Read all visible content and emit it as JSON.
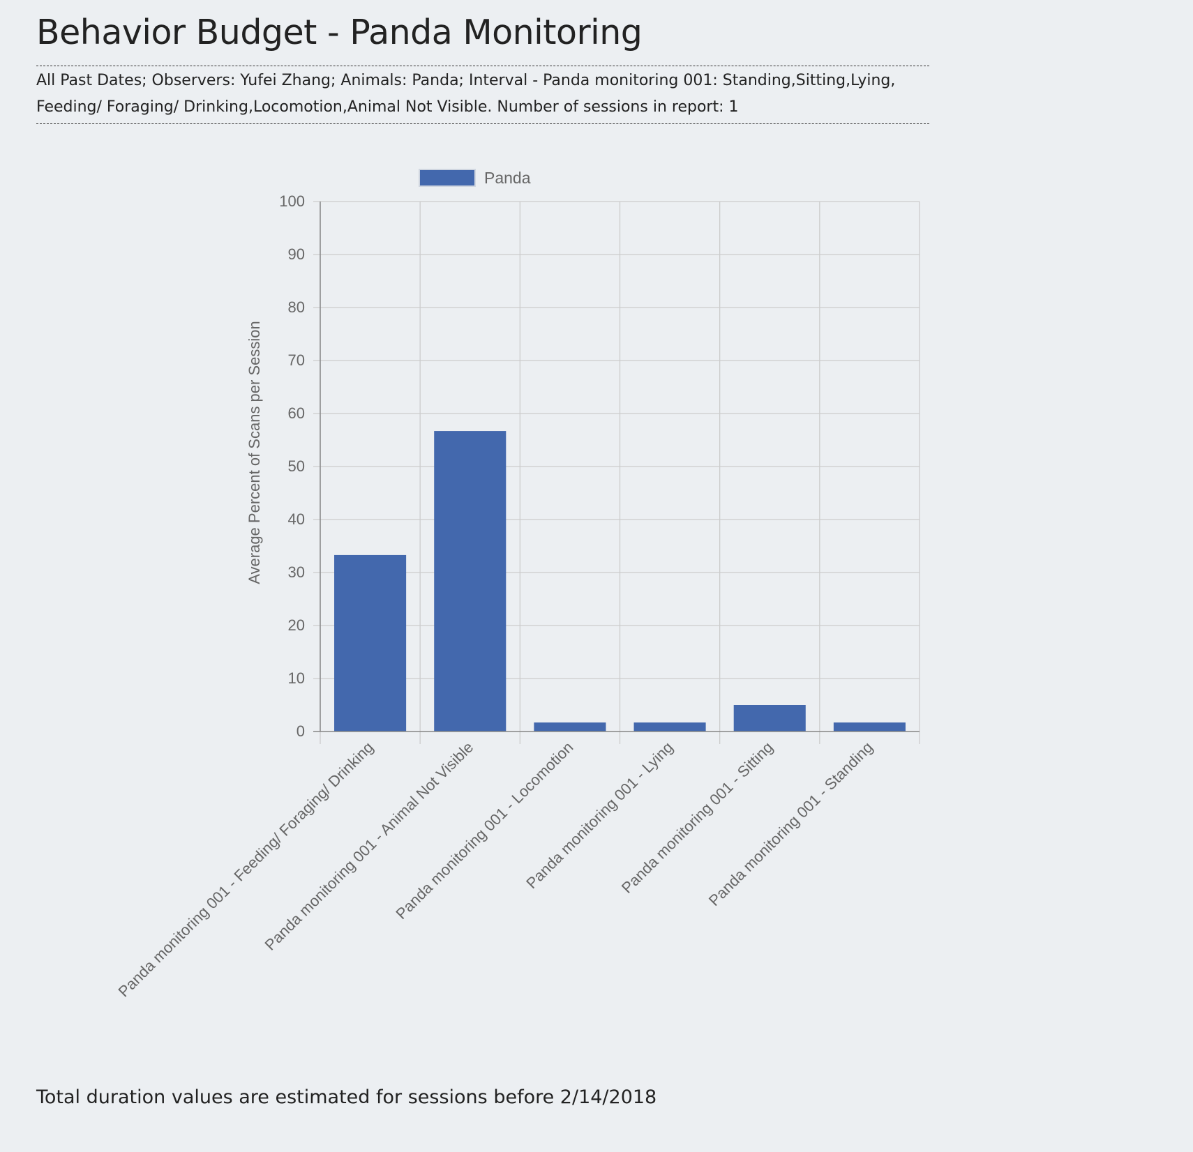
{
  "page": {
    "title": "Behavior Budget - Panda Monitoring",
    "summary": "All Past Dates; Observers: Yufei Zhang; Animals: Panda; Interval - Panda monitoring 001: Standing,Sitting,Lying, Feeding/ Foraging/ Drinking,Locomotion,Animal Not Visible. Number of sessions in report: 1",
    "footnote": "Total duration values are estimated for sessions before 2/14/2018"
  },
  "colors": {
    "bar": "#4368ad",
    "grid": "#cccccc",
    "axis": "#888888",
    "text": "#666666",
    "background": "#eceff2"
  },
  "chart_data": {
    "type": "bar",
    "categories": [
      "Panda monitoring 001 -  Feeding/ Foraging/ Drinking",
      "Panda monitoring 001 - Animal Not Visible",
      "Panda monitoring 001 - Locomotion",
      "Panda monitoring 001 - Lying",
      "Panda monitoring 001 - Sitting",
      "Panda monitoring 001 - Standing"
    ],
    "series": [
      {
        "name": "Panda",
        "values": [
          33.3,
          56.7,
          1.7,
          1.7,
          5.0,
          1.7
        ]
      }
    ],
    "title": "",
    "xlabel": "",
    "ylabel": "Average Percent of Scans per Session",
    "ylim": [
      0,
      100
    ],
    "yticks": [
      "0",
      "10",
      "20",
      "30",
      "40",
      "50",
      "60",
      "70",
      "80",
      "90",
      "100"
    ],
    "grid": true,
    "legend": "top"
  }
}
